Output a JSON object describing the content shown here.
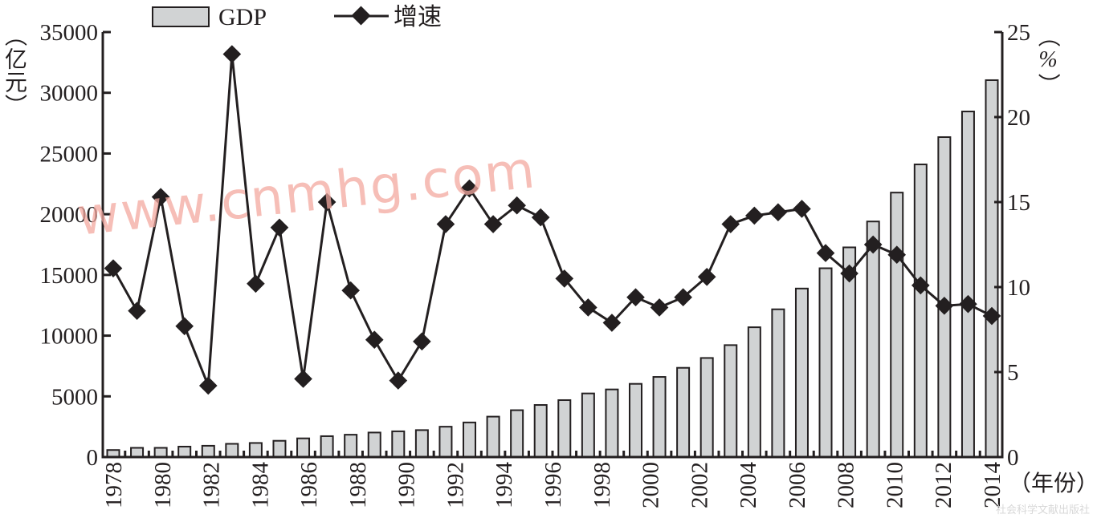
{
  "chart_data": {
    "type": "bar+line",
    "title": "",
    "legend": {
      "position": "top",
      "entries": [
        {
          "name": "GDP",
          "type": "bar",
          "color": "#d1d3d4"
        },
        {
          "name": "增速",
          "type": "line",
          "color": "#231f20",
          "marker": "diamond"
        }
      ]
    },
    "categories": [
      "1978",
      "1979",
      "1980",
      "1981",
      "1982",
      "1983",
      "1984",
      "1985",
      "1986",
      "1987",
      "1988",
      "1989",
      "1990",
      "1991",
      "1992",
      "1993",
      "1994",
      "1995",
      "1996",
      "1997",
      "1998",
      "1999",
      "2000",
      "2001",
      "2002",
      "2003",
      "2004",
      "2005",
      "2006",
      "2007",
      "2008",
      "2009",
      "2010",
      "2011",
      "2012",
      "2013",
      "2014",
      "2015"
    ],
    "x_tick_labels": [
      "1978",
      "1980",
      "1982",
      "1984",
      "1986",
      "1988",
      "1990",
      "1992",
      "1994",
      "1996",
      "1998",
      "2000",
      "2002",
      "2004",
      "2006",
      "2008",
      "2010",
      "2012",
      "2014"
    ],
    "series": [
      {
        "name": "GDP",
        "axis": "left",
        "type": "bar",
        "values": [
          580,
          760,
          760,
          860,
          930,
          1090,
          1160,
          1340,
          1540,
          1720,
          1840,
          2020,
          2120,
          2220,
          2500,
          2850,
          3330,
          3860,
          4290,
          4690,
          5240,
          5570,
          6030,
          6600,
          7350,
          8160,
          9220,
          10690,
          12170,
          13880,
          15550,
          17270,
          19400,
          21780,
          24100,
          26350,
          28460,
          31040
        ]
      },
      {
        "name": "增速",
        "axis": "right",
        "type": "line",
        "values": [
          11.1,
          8.6,
          15.3,
          7.7,
          4.2,
          23.7,
          10.2,
          13.5,
          4.6,
          15.0,
          9.8,
          6.9,
          4.5,
          6.8,
          13.7,
          15.8,
          13.7,
          14.8,
          14.1,
          10.5,
          8.8,
          7.9,
          9.4,
          8.8,
          9.4,
          10.6,
          13.7,
          14.2,
          14.4,
          14.6,
          12.0,
          10.8,
          12.5,
          11.9,
          10.1,
          8.9,
          9.0,
          8.3
        ]
      }
    ],
    "y_left": {
      "label": "（亿元）",
      "chars": [
        "（",
        "亿",
        "元",
        "）"
      ],
      "ylim": [
        0,
        35000
      ],
      "ticks": [
        "0",
        "5000",
        "10000",
        "15000",
        "20000",
        "25000",
        "30000",
        "35000"
      ]
    },
    "y_right": {
      "label": "（%）",
      "chars": [
        "（",
        "%",
        "）"
      ],
      "ylim": [
        0,
        25
      ],
      "ticks": [
        "0",
        "5",
        "10",
        "15",
        "20",
        "25"
      ]
    },
    "xlabel": "（年份）",
    "grid": false
  },
  "watermark": "www.cnmhg.com",
  "publisher_mark": "社会科学文献出版社"
}
